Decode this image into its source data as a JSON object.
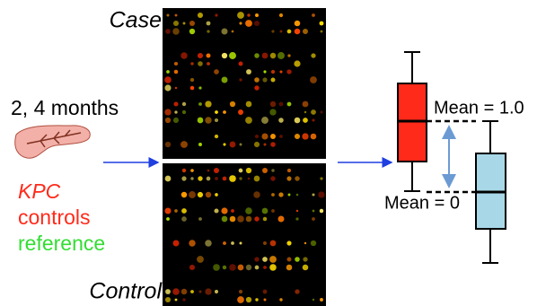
{
  "labels": {
    "case": "Case",
    "control": "Control",
    "time": "2, 4 months",
    "groups": [
      {
        "text": "KPC",
        "color": "#ff2a1a"
      },
      {
        "text": "controls",
        "color": "#ff2a1a"
      },
      {
        "text": "reference",
        "color": "#33dd33"
      }
    ],
    "mean_high": "Mean = 1.0",
    "mean_low": "Mean = 0"
  }
}
